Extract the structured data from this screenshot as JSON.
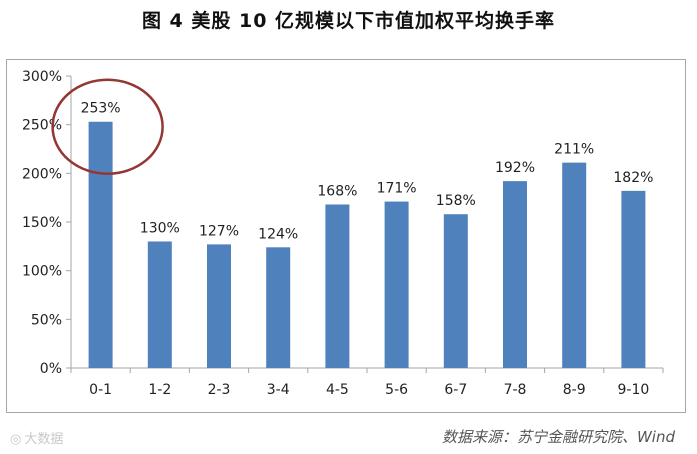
{
  "title": "图 4 美股 10 亿规模以下市值加权平均换手率",
  "source": "数据来源：苏宁金融研究院、Wind",
  "watermark": "大数据",
  "colors": {
    "bar": "#4f81bd",
    "highlight_circle": "#943634",
    "axis": "#a6a6a6"
  },
  "chart_data": {
    "type": "bar",
    "title": "图 4 美股 10 亿规模以下市值加权平均换手率",
    "xlabel": "",
    "ylabel": "",
    "categories": [
      "0-1",
      "1-2",
      "2-3",
      "3-4",
      "4-5",
      "5-6",
      "6-7",
      "7-8",
      "8-9",
      "9-10"
    ],
    "values": [
      253,
      130,
      127,
      124,
      168,
      171,
      158,
      192,
      211,
      182
    ],
    "data_labels": [
      "253%",
      "130%",
      "127%",
      "124%",
      "168%",
      "171%",
      "158%",
      "192%",
      "211%",
      "182%"
    ],
    "ylim": [
      0,
      300
    ],
    "yticks": [
      0,
      50,
      100,
      150,
      200,
      250,
      300
    ],
    "ytick_labels": [
      "0%",
      "50%",
      "100%",
      "150%",
      "200%",
      "250%",
      "300%"
    ],
    "grid": false,
    "legend": "none",
    "highlighted_category": "0-1"
  }
}
